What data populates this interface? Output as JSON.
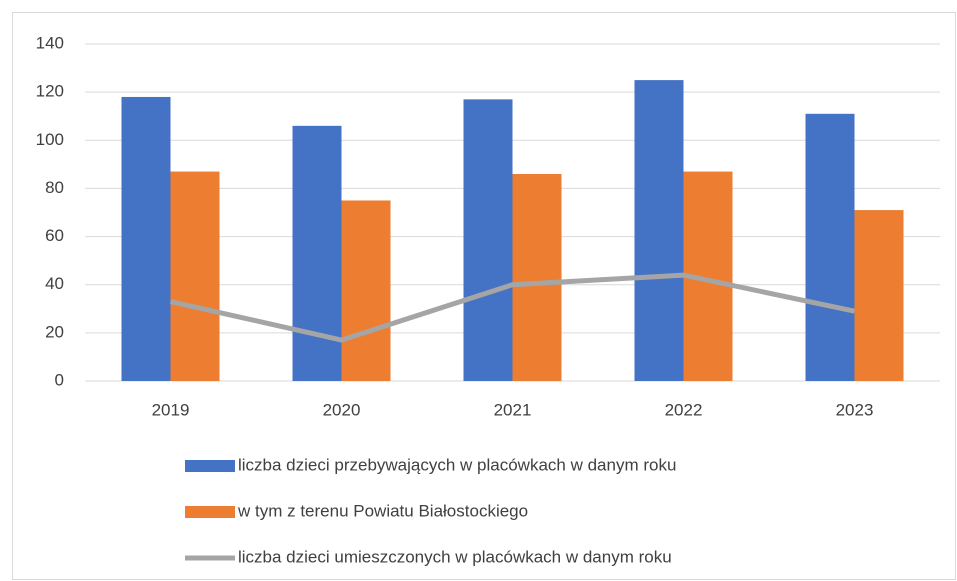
{
  "chart_data": {
    "type": "bar",
    "categories": [
      "2019",
      "2020",
      "2021",
      "2022",
      "2023"
    ],
    "series": [
      {
        "name": "liczba dzieci przebywających w placówkach w danym roku",
        "color": "#4472c4",
        "values": [
          118,
          106,
          117,
          125,
          111
        ]
      },
      {
        "name": "w tym z terenu Powiatu Białostockiego",
        "color": "#ed7d31",
        "values": [
          87,
          75,
          86,
          87,
          71
        ]
      },
      {
        "name": "liczba dzieci umieszczonych w placówkach w danym roku",
        "color": "#a5a5a5",
        "type": "line",
        "values": [
          33,
          17,
          40,
          44,
          29
        ]
      }
    ],
    "ylim": [
      0,
      140
    ],
    "yticks": [
      0,
      20,
      40,
      60,
      80,
      100,
      120,
      140
    ],
    "grid": true,
    "legend": "bottom"
  }
}
